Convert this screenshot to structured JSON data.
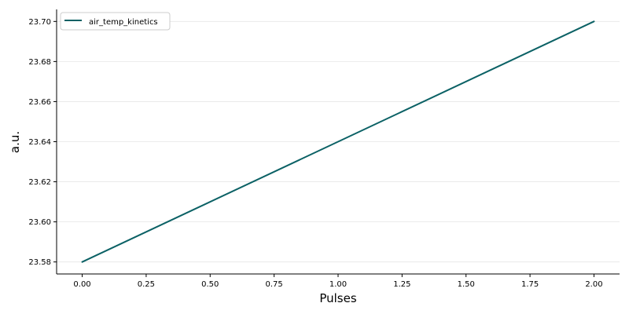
{
  "chart_data": {
    "type": "line",
    "title": "",
    "xlabel": "Pulses",
    "ylabel": "a.u.",
    "xlim": [
      -0.1,
      2.1
    ],
    "ylim": [
      23.574,
      23.706
    ],
    "x_ticks": [
      0.0,
      0.25,
      0.5,
      0.75,
      1.0,
      1.25,
      1.5,
      1.75,
      2.0
    ],
    "x_tick_labels": [
      "0.00",
      "0.25",
      "0.50",
      "0.75",
      "1.00",
      "1.25",
      "1.50",
      "1.75",
      "2.00"
    ],
    "y_ticks": [
      23.58,
      23.6,
      23.62,
      23.64,
      23.66,
      23.68,
      23.7
    ],
    "y_tick_labels": [
      "23.58",
      "23.60",
      "23.62",
      "23.64",
      "23.66",
      "23.68",
      "23.70"
    ],
    "grid": "horizontal",
    "legend_position": "top-left",
    "series": [
      {
        "name": "air_temp_kinetics",
        "color": "#0b6165",
        "x": [
          0,
          2
        ],
        "y": [
          23.58,
          23.7
        ]
      }
    ]
  }
}
